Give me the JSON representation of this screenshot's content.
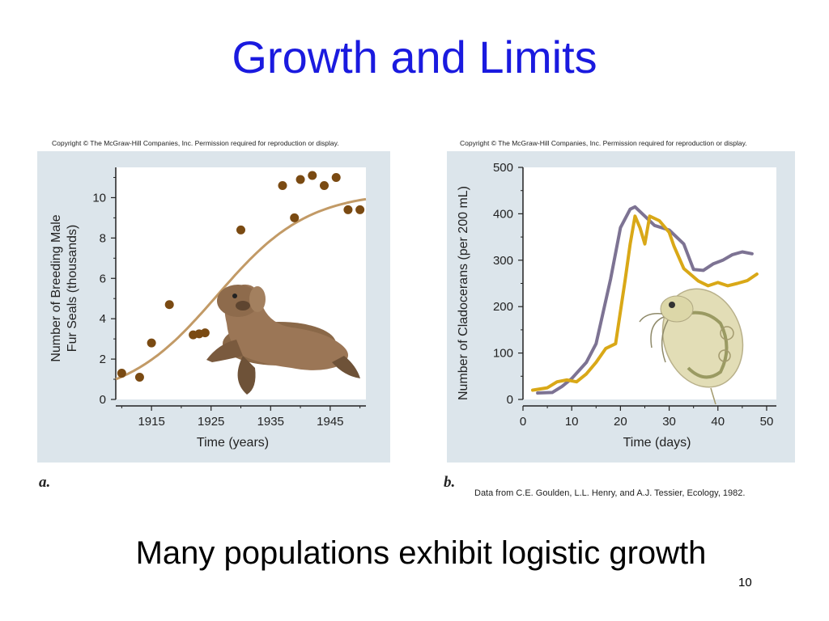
{
  "slide": {
    "title": "Growth and Limits",
    "caption": "Many populations exhibit logistic growth",
    "page_number": "10"
  },
  "colors": {
    "title": "#1a1adf",
    "panel_bg": "#dce5eb",
    "seal_dots": "#7a4a12",
    "seal_curve": "#c29a66",
    "series_purple": "#7d7393",
    "series_gold": "#d9a817"
  },
  "panel_a": {
    "copyright": "Copyright © The McGraw-Hill Companies, Inc. Permission required for reproduction or display.",
    "letter": "a.",
    "illustration": "fur-seal"
  },
  "panel_b": {
    "copyright": "Copyright © The McGraw-Hill Companies, Inc. Permission required for reproduction or display.",
    "letter": "b.",
    "credit": "Data from C.E. Goulden, L.L. Henry, and A.J. Tessier, Ecology, 1982.",
    "illustration": "cladoceran"
  },
  "chart_data": [
    {
      "type": "scatter",
      "xlabel": "Time (years)",
      "ylabel": [
        "Number of Breeding Male",
        "Fur Seals (thousands)"
      ],
      "xlim": [
        1909,
        1951
      ],
      "ylim": [
        0,
        11.5
      ],
      "xticks": [
        1915,
        1925,
        1935,
        1945
      ],
      "yticks": [
        0,
        2,
        4,
        6,
        8,
        10
      ],
      "grid": false,
      "points": [
        {
          "x": 1910,
          "y": 1.3
        },
        {
          "x": 1913,
          "y": 1.1
        },
        {
          "x": 1915,
          "y": 2.8
        },
        {
          "x": 1918,
          "y": 4.7
        },
        {
          "x": 1922,
          "y": 3.2
        },
        {
          "x": 1923,
          "y": 3.25
        },
        {
          "x": 1924,
          "y": 3.3
        },
        {
          "x": 1930,
          "y": 8.4
        },
        {
          "x": 1937,
          "y": 10.6
        },
        {
          "x": 1939,
          "y": 9.0
        },
        {
          "x": 1940,
          "y": 10.9
        },
        {
          "x": 1942,
          "y": 11.1
        },
        {
          "x": 1944,
          "y": 10.6
        },
        {
          "x": 1946,
          "y": 11.0
        },
        {
          "x": 1948,
          "y": 9.4
        },
        {
          "x": 1950,
          "y": 9.4
        }
      ],
      "fitted_curve": {
        "type": "logistic",
        "K": 10.3,
        "y_start": 1.0,
        "midpoint": 1926
      }
    },
    {
      "type": "line",
      "xlabel": "Time (days)",
      "ylabel": "Number of Cladocerans (per 200 mL)",
      "xlim": [
        0,
        52
      ],
      "ylim": [
        0,
        500
      ],
      "xticks": [
        0,
        10,
        20,
        30,
        40,
        50
      ],
      "yticks": [
        0,
        100,
        200,
        300,
        400,
        500
      ],
      "grid": false,
      "series": [
        {
          "color": "#7d7393",
          "points": [
            [
              3,
              14
            ],
            [
              6,
              15
            ],
            [
              8,
              28
            ],
            [
              10,
              45
            ],
            [
              13,
              80
            ],
            [
              15,
              120
            ],
            [
              18,
              260
            ],
            [
              20,
              370
            ],
            [
              22,
              410
            ],
            [
              23,
              415
            ],
            [
              25,
              395
            ],
            [
              27,
              375
            ],
            [
              30,
              365
            ],
            [
              33,
              335
            ],
            [
              35,
              280
            ],
            [
              37,
              278
            ],
            [
              39,
              292
            ],
            [
              41,
              300
            ],
            [
              43,
              312
            ],
            [
              45,
              318
            ],
            [
              47,
              314
            ]
          ]
        },
        {
          "color": "#d9a817",
          "points": [
            [
              2,
              20
            ],
            [
              5,
              25
            ],
            [
              7,
              38
            ],
            [
              9,
              42
            ],
            [
              11,
              38
            ],
            [
              13,
              55
            ],
            [
              15,
              80
            ],
            [
              17,
              110
            ],
            [
              19,
              120
            ],
            [
              21,
              260
            ],
            [
              22,
              335
            ],
            [
              23,
              395
            ],
            [
              24,
              370
            ],
            [
              25,
              335
            ],
            [
              26,
              395
            ],
            [
              28,
              385
            ],
            [
              30,
              360
            ],
            [
              31,
              330
            ],
            [
              33,
              282
            ],
            [
              36,
              255
            ],
            [
              38,
              245
            ],
            [
              40,
              252
            ],
            [
              42,
              245
            ],
            [
              44,
              250
            ],
            [
              46,
              256
            ],
            [
              48,
              270
            ]
          ]
        }
      ]
    }
  ]
}
